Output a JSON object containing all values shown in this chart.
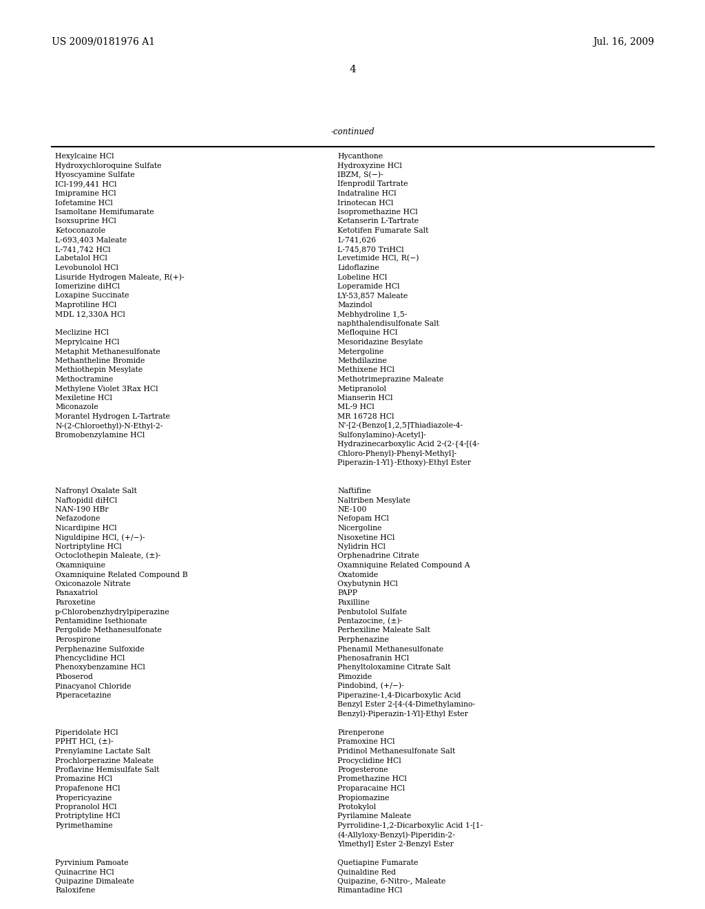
{
  "header_left": "US 2009/0181976 A1",
  "header_right": "Jul. 16, 2009",
  "page_number": "4",
  "continued_label": "-continued",
  "left_column": [
    "Hexylcaine HCl",
    "Hydroxychloroquine Sulfate",
    "Hyoscyamine Sulfate",
    "ICl-199,441 HCl",
    "Imipramine HCl",
    "Iofetamine HCl",
    "Isamoltane Hemifumarate",
    "Isoxsuprine HCl",
    "Ketoconazole",
    "L-693,403 Maleate",
    "L-741,742 HCl",
    "Labetalol HCl",
    "Levobunolol HCl",
    "Lisuride Hydrogen Maleate, R(+)-",
    "Iomerizine diHCl",
    "Loxapine Succinate",
    "Maprotiline HCl",
    "MDL 12,330A HCl",
    "",
    "Meclizine HCl",
    "Meprylcaine HCl",
    "Metaphit Methanesulfonate",
    "Methantheline Bromide",
    "Methiothepin Mesylate",
    "Methoctramine",
    "Methylene Violet 3Rax HCl",
    "Mexiletine HCl",
    "Miconazole",
    "Morantel Hydrogen L-Tartrate",
    "N-(2-Chloroethyl)-N-Ethyl-2-",
    "Bromobenzylamine HCl",
    "",
    "",
    "",
    "",
    "",
    "Nafronyl Oxalate Salt",
    "Naftopidil diHCl",
    "NAN-190 HBr",
    "Nefazodone",
    "Nicardipine HCl",
    "Niguldipine HCl, (+/−)-",
    "Nortriptyline HCl",
    "Octoclothepin Maleate, (±)-",
    "Oxamniquine",
    "Oxamniquine Related Compound B",
    "Oxiconazole Nitrate",
    "Panaxatriol",
    "Paroxetine",
    "p-Chlorobenzhydrylpiperazine",
    "Pentamidine Isethionate",
    "Pergolide Methanesulfonate",
    "Perospirone",
    "Perphenazine Sulfoxide",
    "Phencyclidine HCl",
    "Phenoxybenzamine HCl",
    "Piboserod",
    "Pinacyanol Chloride",
    "Piperacetazine",
    "",
    "",
    "",
    "Piperidolate HCl",
    "PPHT HCl, (±)-",
    "Prenylamine Lactate Salt",
    "Prochlorperazine Maleate",
    "Proflavine Hemisulfate Salt",
    "Promazine HCl",
    "Propafenone HCl",
    "Propericyazine",
    "Propranolol HCl",
    "Protriptyline HCl",
    "Pyrimethamine",
    "",
    "",
    "",
    "Pyrvinium Pamoate",
    "Quinacrine HCl",
    "Quipazine Dimaleate",
    "Raloxifene"
  ],
  "right_column": [
    "Hycanthone",
    "Hydroxyzine HCl",
    "IBZM, S(−)-",
    "Ifenprodil Tartrate",
    "Indatraline HCl",
    "Irinotecan HCl",
    "Isopromethazine HCl",
    "Ketanserin L-Tartrate",
    "Ketotifen Fumarate Salt",
    "L-741,626",
    "L-745,870 TriHCl",
    "Levetimide HCl, R(−)",
    "Lidoflazine",
    "Lobeline HCl",
    "Loperamide HCl",
    "LY-53,857 Maleate",
    "Mazindol",
    "Mebhydroline 1,5-",
    "naphthalendisulfonate Salt",
    "Mefloquine HCl",
    "Mesoridazine Besylate",
    "Metergoline",
    "Methdilazine",
    "Methixene HCl",
    "Methotrimeprazine Maleate",
    "Metipranolol",
    "Mianserin HCl",
    "ML-9 HCl",
    "MR 16728 HCl",
    "N'-[2-(Benzo[1,2,5]Thiadiazole-4-",
    "Sulfonylamino)-Acetyl]-",
    "Hydrazinecarboxylic Acid 2-(2-{4-[(4-",
    "Chloro-Phenyl)-Phenyl-Methyl]-",
    "Piperazin-1-Yl}-Ethoxy)-Ethyl Ester",
    "",
    "",
    "Naftifine",
    "Naltriben Mesylate",
    "NE-100",
    "Nefopam HCl",
    "Nicergoline",
    "Nisoxetine HCl",
    "Nylidrin HCl",
    "Orphenadrine Citrate",
    "Oxamniquine Related Compound A",
    "Oxatomide",
    "Oxybutynin HCl",
    "PAPP",
    "Paxilline",
    "Penbutolol Sulfate",
    "Pentazocine, (±)-",
    "Perhexiline Maleate Salt",
    "Perphenazine",
    "Phenamil Methanesulfonate",
    "Phenosafranin HCl",
    "Phenyltoloxamine Citrate Salt",
    "Pimozide",
    "Pindobind, (+/−)-",
    "Piperazine-1,4-Dicarboxylic Acid",
    "Benzyl Ester 2-[4-(4-Dimethylamino-",
    "Benzyl)-Piperazin-1-Yl]-Ethyl Ester",
    "",
    "Pirenperone",
    "Pramoxine HCl",
    "Pridinol Methanesulfonate Salt",
    "Procyclidine HCl",
    "Progesterone",
    "Promethazine HCl",
    "Proparacaine HCl",
    "Propiomazine",
    "Protokylol",
    "Pyrilamine Maleate",
    "Pyrrolidine-1,2-Dicarboxylic Acid 1-[1-",
    "(4-Allyloxy-Benzyl)-Piperidin-2-",
    "Ylmethyl] Ester 2-Benzyl Ester",
    "",
    "Quetiapine Fumarate",
    "Quinaldine Red",
    "Quipazine, 6-Nitro-, Maleate",
    "Rimantadine HCl"
  ],
  "bg_color": "#ffffff",
  "text_color": "#000000",
  "font_size": 7.8,
  "header_font_size": 10.0,
  "page_num_font_size": 11.0,
  "continued_font_size": 8.5
}
